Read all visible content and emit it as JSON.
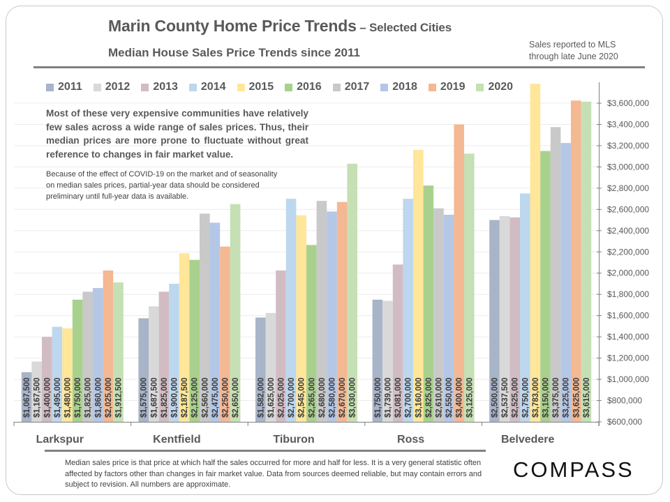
{
  "header": {
    "title": "Marin County Home Price Trends",
    "title_suffix": " – Selected Cities",
    "subtitle": "Median House Sales Price Trends since 2011",
    "note_line1": "Sales reported to MLS",
    "note_line2": "through late June 2020"
  },
  "callout": {
    "main": "Most of these very expensive communities have relatively few sales across a wide range of sales prices. Thus, their median prices are more prone to fluctuate without great reference to changes in fair market value.",
    "secondary": "Because of the effect of COVID-19 on the market and of seasonality on median sales prices, partial-year data should be considered preliminary until full-year data is available."
  },
  "footer": {
    "footnote": "Median sales price is that price at which half the sales occurred for more and half for less. It is a very general statistic often affected by factors other than changes in fair market value. Data from sources deemed reliable, but may contain errors and subject to revision. All numbers are approximate.",
    "logo": "COMPASS"
  },
  "chart_data": {
    "type": "bar",
    "title": "Marin County Home Price Trends – Selected Cities",
    "subtitle": "Median House Sales Price Trends since 2011",
    "xlabel": "",
    "ylabel": "",
    "ylim": [
      600000,
      3600000
    ],
    "y_axis_position": "right",
    "yticks": [
      600000,
      800000,
      1000000,
      1200000,
      1400000,
      1600000,
      1800000,
      2000000,
      2200000,
      2400000,
      2600000,
      2800000,
      3000000,
      3200000,
      3400000,
      3600000
    ],
    "ytick_labels": [
      "$600,000",
      "$800,000",
      "$1,000,000",
      "$1,200,000",
      "$1,400,000",
      "$1,600,000",
      "$1,800,000",
      "$2,000,000",
      "$2,200,000",
      "$2,400,000",
      "$2,600,000",
      "$2,800,000",
      "$3,000,000",
      "$3,200,000",
      "$3,400,000",
      "$3,600,000"
    ],
    "grid": true,
    "legend_position": "top",
    "categories": [
      "Larkspur",
      "Kentfield",
      "Tiburon",
      "Ross",
      "Belvedere"
    ],
    "series": [
      {
        "name": "2011",
        "color": "#a8b4c8",
        "values": [
          1067500,
          1575000,
          1582000,
          1750000,
          2500000
        ],
        "labels": [
          "$1,067,500",
          "$1,575,000",
          "$1,582,000",
          "$1,750,000",
          "$2,500,000"
        ]
      },
      {
        "name": "2012",
        "color": "#d9d9d9",
        "values": [
          1167500,
          1687500,
          1625000,
          1739000,
          2537500
        ],
        "labels": [
          "$1,167,500",
          "$1,687,500",
          "$1,625,000",
          "$1,739,000",
          "$2,537,500"
        ]
      },
      {
        "name": "2013",
        "color": "#d2bcc4",
        "values": [
          1400000,
          1825000,
          2025000,
          2081000,
          2525000
        ],
        "labels": [
          "$1,400,000",
          "$1,825,000",
          "$2,025,000",
          "$2,081,000",
          "$2,525,000"
        ]
      },
      {
        "name": "2014",
        "color": "#bdd7ee",
        "values": [
          1495000,
          1900000,
          2700000,
          2700000,
          2750000
        ],
        "labels": [
          "$1,495,000",
          "$1,900,000",
          "$2,700,000",
          "$2,700,000",
          "$2,750,000"
        ]
      },
      {
        "name": "2015",
        "color": "#ffe699",
        "values": [
          1480000,
          2187500,
          2545000,
          3160000,
          3783000
        ],
        "labels": [
          "$1,480,000",
          "$2,187,500",
          "$2,545,000",
          "$3,160,000",
          "$3,783,000"
        ]
      },
      {
        "name": "2016",
        "color": "#a9d18e",
        "values": [
          1750000,
          2125000,
          2265000,
          2825000,
          3150000
        ],
        "labels": [
          "$1,750,000",
          "$2,125,000",
          "$2,265,000",
          "$2,825,000",
          "$3,150,000"
        ]
      },
      {
        "name": "2017",
        "color": "#c9c9c9",
        "values": [
          1825000,
          2560000,
          2680000,
          2610000,
          3375000
        ],
        "labels": [
          "$1,825,000",
          "$2,560,000",
          "$2,680,000",
          "$2,610,000",
          "$3,375,000"
        ]
      },
      {
        "name": "2018",
        "color": "#b4c7e7",
        "values": [
          1860000,
          2475000,
          2580000,
          2550000,
          3225000
        ],
        "labels": [
          "$1,860,000",
          "$2,475,000",
          "$2,580,000",
          "$2,550,000",
          "$3,225,000"
        ]
      },
      {
        "name": "2019",
        "color": "#f4b893",
        "values": [
          2025000,
          2250000,
          2670000,
          3400000,
          3625000
        ],
        "labels": [
          "$2,025,000",
          "$2,250,000",
          "$2,670,000",
          "$3,400,000",
          "$3,625,000"
        ]
      },
      {
        "name": "2020",
        "color": "#c5e0b4",
        "values": [
          1912500,
          2650000,
          3030000,
          3125000,
          3615000
        ],
        "labels": [
          "$1,912,500",
          "$2,650,000",
          "$3,030,000",
          "$3,125,000",
          "$3,615,000"
        ]
      }
    ]
  }
}
